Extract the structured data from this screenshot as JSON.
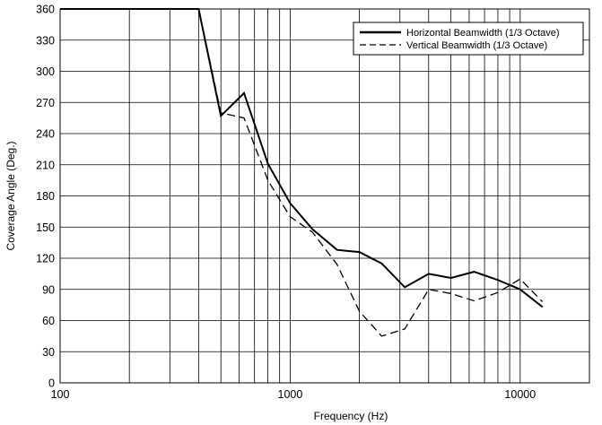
{
  "chart_data": {
    "type": "line",
    "xlabel": "Frequency (Hz)",
    "ylabel": "Coverage Angle (Deg.)",
    "xscale": "log",
    "xlim": [
      100,
      20000
    ],
    "ylim": [
      0,
      360
    ],
    "grid": true,
    "legend_position": "top-right",
    "x_tick_labels": [
      "100",
      "1000",
      "10000"
    ],
    "y_tick_labels": [
      "0",
      "30",
      "60",
      "90",
      "120",
      "150",
      "180",
      "210",
      "240",
      "270",
      "300",
      "330",
      "360"
    ],
    "series": [
      {
        "name": "Horizontal Beamwidth (1/3 Octave)",
        "style": "solid",
        "x": [
          100,
          400,
          500,
          630,
          800,
          1000,
          1250,
          1600,
          2000,
          2500,
          3150,
          4000,
          5000,
          6300,
          8000,
          10000,
          12500
        ],
        "y": [
          360,
          360,
          257,
          279,
          211,
          173,
          148,
          128,
          126,
          115,
          92,
          105,
          101,
          107,
          99,
          90,
          73
        ]
      },
      {
        "name": "Vertical Beamwidth (1/3 Octave)",
        "style": "dashed",
        "x": [
          100,
          400,
          500,
          630,
          800,
          1000,
          1250,
          1600,
          2000,
          2500,
          3150,
          4000,
          5000,
          6300,
          8000,
          10000,
          12500
        ],
        "y": [
          360,
          360,
          260,
          255,
          195,
          160,
          145,
          114,
          69,
          45,
          52,
          90,
          86,
          79,
          87,
          100,
          78
        ]
      }
    ]
  }
}
